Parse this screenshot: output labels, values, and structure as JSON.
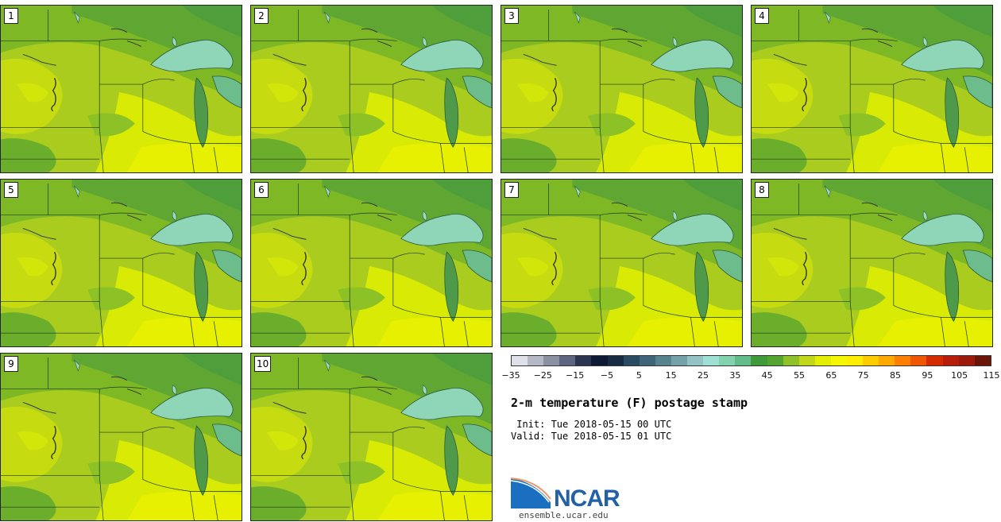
{
  "panels": [
    {
      "label": "1"
    },
    {
      "label": "2"
    },
    {
      "label": "3"
    },
    {
      "label": "4"
    },
    {
      "label": "5"
    },
    {
      "label": "6"
    },
    {
      "label": "7"
    },
    {
      "label": "8"
    },
    {
      "label": "9"
    },
    {
      "label": "10"
    }
  ],
  "colorbar": {
    "colors": [
      "#dfe0e8",
      "#b5b8c6",
      "#8c90a3",
      "#5e6582",
      "#2b3552",
      "#0e1a33",
      "#172b45",
      "#2b4a63",
      "#3f6578",
      "#57838f",
      "#74a2a8",
      "#93c3c4",
      "#9fe0d4",
      "#82d2b0",
      "#62bd8a",
      "#3f9a3a",
      "#54a530",
      "#8fc228",
      "#c1d81a",
      "#e4ef00",
      "#f4f700",
      "#ffee00",
      "#ffcc00",
      "#ffa800",
      "#ff7f00",
      "#f05500",
      "#d42a00",
      "#b81c0a",
      "#9c1a0c",
      "#6b1508"
    ],
    "ticks": [
      "−35",
      "−25",
      "−15",
      "−5",
      "5",
      "15",
      "25",
      "35",
      "45",
      "55",
      "65",
      "75",
      "85",
      "95",
      "105",
      "115"
    ]
  },
  "title": "2-m temperature (F) postage stamp",
  "init": " Init: Tue 2018-05-15 00 UTC",
  "valid": "Valid: Tue 2018-05-15 01 UTC",
  "logo": {
    "text": "NCAR",
    "url_text": "ensemble.ucar.edu"
  }
}
